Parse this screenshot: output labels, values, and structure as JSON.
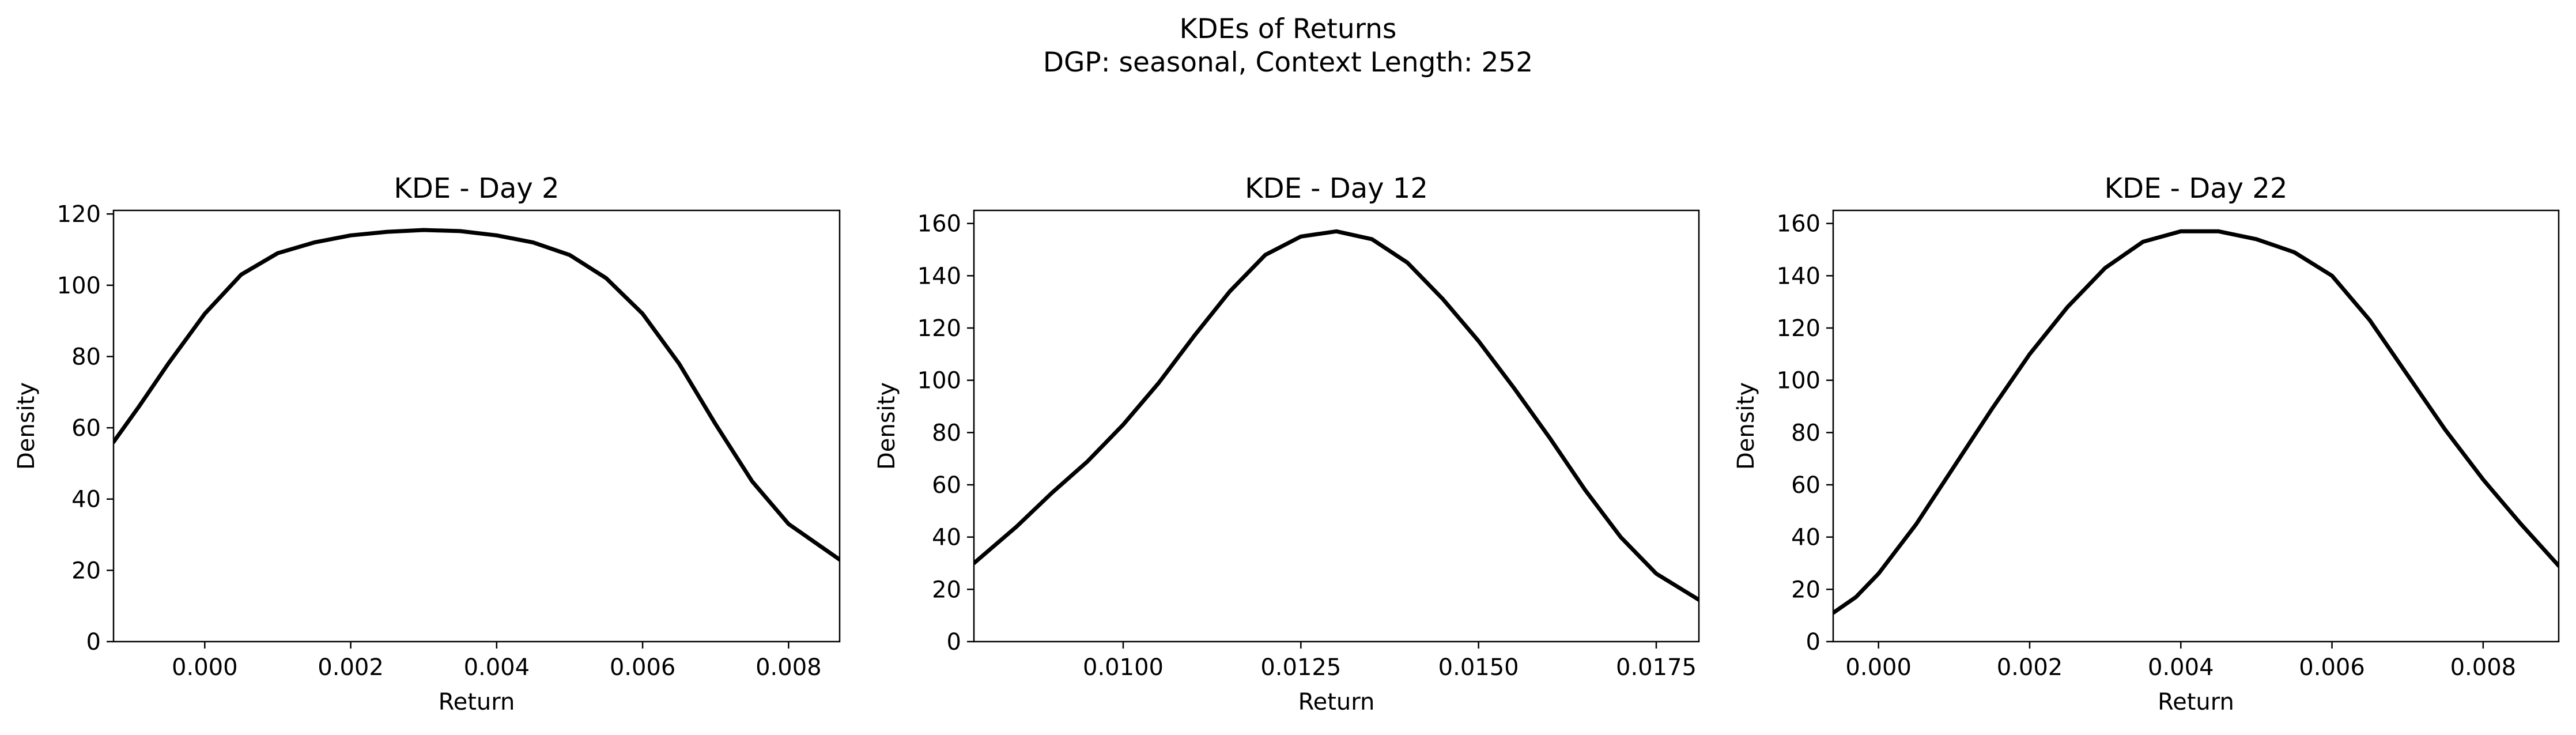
{
  "figure": {
    "title_line1": "KDEs of Returns",
    "title_line2": "DGP: seasonal, Context Length: 252"
  },
  "style": {
    "line_color": "#000000",
    "background": "#ffffff"
  },
  "chart_data": [
    {
      "type": "line",
      "title": "KDE - Day 2",
      "xlabel": "Return",
      "ylabel": "Density",
      "xlim": [
        -0.00125,
        0.0087
      ],
      "ylim": [
        0,
        121
      ],
      "xticks": [
        0.0,
        0.002,
        0.004,
        0.006,
        0.008
      ],
      "xtick_labels": [
        "0.000",
        "0.002",
        "0.004",
        "0.006",
        "0.008"
      ],
      "yticks": [
        0,
        20,
        40,
        60,
        80,
        100,
        120
      ],
      "ytick_labels": [
        "0",
        "20",
        "40",
        "60",
        "80",
        "100",
        "120"
      ],
      "grid": false,
      "series": [
        {
          "x": [
            -0.00125,
            -0.0009,
            -0.0005,
            0.0,
            0.0005,
            0.001,
            0.0015,
            0.002,
            0.0025,
            0.003,
            0.0035,
            0.004,
            0.0045,
            0.005,
            0.0055,
            0.006,
            0.0065,
            0.007,
            0.0075,
            0.008,
            0.0087
          ],
          "y": [
            56,
            66,
            78,
            92,
            103,
            109,
            112,
            114,
            115,
            115.5,
            115.2,
            114,
            112,
            108.5,
            102,
            92,
            78,
            61,
            45,
            33,
            23
          ]
        }
      ]
    },
    {
      "type": "line",
      "title": "KDE - Day 12",
      "xlabel": "Return",
      "ylabel": "Density",
      "xlim": [
        0.0079,
        0.0181
      ],
      "ylim": [
        0,
        165
      ],
      "xticks": [
        0.01,
        0.0125,
        0.015,
        0.0175
      ],
      "xtick_labels": [
        "0.0100",
        "0.0125",
        "0.0150",
        "0.0175"
      ],
      "yticks": [
        0,
        20,
        40,
        60,
        80,
        100,
        120,
        140,
        160
      ],
      "ytick_labels": [
        "0",
        "20",
        "40",
        "60",
        "80",
        "100",
        "120",
        "140",
        "160"
      ],
      "grid": false,
      "series": [
        {
          "x": [
            0.0079,
            0.0085,
            0.009,
            0.0095,
            0.01,
            0.0105,
            0.011,
            0.0115,
            0.012,
            0.0125,
            0.013,
            0.0135,
            0.014,
            0.0145,
            0.015,
            0.0155,
            0.016,
            0.0165,
            0.017,
            0.0175,
            0.0181
          ],
          "y": [
            30,
            44,
            57,
            69,
            83,
            99,
            117,
            134,
            148,
            155,
            157,
            154,
            145,
            131,
            115,
            97,
            78,
            58,
            40,
            26,
            16
          ]
        }
      ]
    },
    {
      "type": "line",
      "title": "KDE - Day 22",
      "xlabel": "Return",
      "ylabel": "Density",
      "xlim": [
        -0.0006,
        0.009
      ],
      "ylim": [
        0,
        165
      ],
      "xticks": [
        0.0,
        0.002,
        0.004,
        0.006,
        0.008
      ],
      "xtick_labels": [
        "0.000",
        "0.002",
        "0.004",
        "0.006",
        "0.008"
      ],
      "yticks": [
        0,
        20,
        40,
        60,
        80,
        100,
        120,
        140,
        160
      ],
      "ytick_labels": [
        "0",
        "20",
        "40",
        "60",
        "80",
        "100",
        "120",
        "140",
        "160"
      ],
      "grid": false,
      "series": [
        {
          "x": [
            -0.0006,
            -0.0003,
            0.0,
            0.0005,
            0.001,
            0.0015,
            0.002,
            0.0025,
            0.003,
            0.0035,
            0.004,
            0.0045,
            0.005,
            0.0055,
            0.006,
            0.0065,
            0.007,
            0.0075,
            0.008,
            0.0085,
            0.009
          ],
          "y": [
            11,
            17,
            26,
            45,
            67,
            89,
            110,
            128,
            143,
            153,
            157,
            157,
            154,
            149,
            140,
            123,
            102,
            81,
            62,
            45,
            29
          ]
        }
      ]
    }
  ]
}
